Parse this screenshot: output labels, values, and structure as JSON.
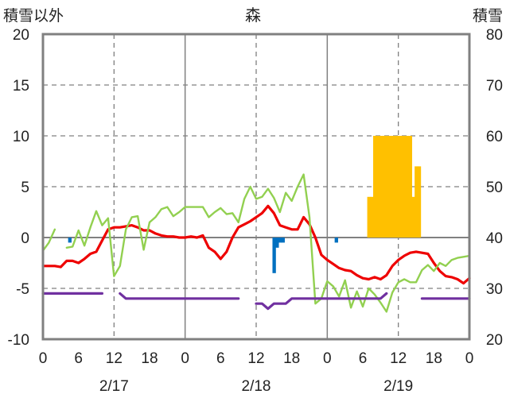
{
  "chart_data": {
    "type": "bar+line",
    "title": "森",
    "y_left_label": "積雪以外",
    "y_right_label": "積雪",
    "y_left_ticks": [
      "20",
      "15",
      "10",
      "5",
      "0",
      "-5",
      "-10"
    ],
    "y_right_ticks": [
      "80",
      "70",
      "60",
      "50",
      "40",
      "30",
      "20"
    ],
    "ylim_left": [
      -10,
      20
    ],
    "ylim_right": [
      20,
      80
    ],
    "x_hours_range": [
      0,
      72
    ],
    "x_tick_labels": [
      "0",
      "6",
      "12",
      "18",
      "0",
      "6",
      "12",
      "18",
      "0",
      "6",
      "12",
      "18",
      "0"
    ],
    "date_labels": [
      {
        "hour": 12,
        "text": "2/17"
      },
      {
        "hour": 36,
        "text": "2/18"
      },
      {
        "hour": 60,
        "text": "2/19"
      }
    ],
    "grid": {
      "solid_x_hours": [
        24,
        48
      ],
      "dashed_x_hours": [
        12,
        36,
        60
      ],
      "dashed_y_left": [
        15,
        10,
        5,
        -5
      ]
    },
    "colors": {
      "red_line": "#ee0000",
      "green_line": "#92d050",
      "purple_line": "#7030a0",
      "blue_bar": "#0070c0",
      "orange_bar": "#ffc000",
      "axis": "#808080"
    },
    "snow_depth_bars": {
      "axis": "right",
      "base": 40,
      "points": [
        [
          55.0,
          48
        ],
        [
          55.5,
          48
        ],
        [
          56.0,
          60
        ],
        [
          56.5,
          60
        ],
        [
          57.0,
          60
        ],
        [
          57.5,
          60
        ],
        [
          58.0,
          60
        ],
        [
          58.5,
          60
        ],
        [
          59.0,
          60
        ],
        [
          59.5,
          60
        ],
        [
          60.0,
          60
        ],
        [
          60.5,
          60
        ],
        [
          61.0,
          60
        ],
        [
          61.5,
          60
        ],
        [
          62.0,
          60
        ],
        [
          62.5,
          48
        ],
        [
          63.0,
          54
        ],
        [
          63.5,
          54
        ],
        [
          64.0,
          40
        ]
      ]
    },
    "precip_bars": {
      "axis": "left",
      "points": [
        [
          4.5,
          -0.5
        ],
        [
          39.5,
          -1.0
        ],
        [
          40.0,
          -0.5
        ],
        [
          40.5,
          -0.5
        ],
        [
          39.0,
          -3.5
        ],
        [
          49.5,
          -0.5
        ]
      ]
    },
    "series": [
      {
        "key": "red",
        "axis": "left",
        "points": [
          [
            0,
            -2.8
          ],
          [
            1,
            -2.8
          ],
          [
            2,
            -2.8
          ],
          [
            3,
            -2.9
          ],
          [
            4,
            -2.3
          ],
          [
            5,
            -2.3
          ],
          [
            6,
            -2.5
          ],
          [
            7,
            -2.1
          ],
          [
            8,
            -1.6
          ],
          [
            9,
            -1.4
          ],
          [
            10,
            -0.3
          ],
          [
            11,
            0.8
          ],
          [
            12,
            1.0
          ],
          [
            13,
            1.0
          ],
          [
            14,
            1.1
          ],
          [
            15,
            1.2
          ],
          [
            16,
            1.0
          ],
          [
            17,
            0.7
          ],
          [
            18,
            0.7
          ],
          [
            19,
            0.4
          ],
          [
            20,
            0.2
          ],
          [
            21,
            0.1
          ],
          [
            22,
            0.1
          ],
          [
            23,
            0.0
          ],
          [
            24,
            0.0
          ],
          [
            25,
            0.1
          ],
          [
            26,
            0.0
          ],
          [
            27,
            0.2
          ],
          [
            28,
            -1.0
          ],
          [
            29,
            -1.4
          ],
          [
            30,
            -2.1
          ],
          [
            31,
            -1.4
          ],
          [
            32,
            0.0
          ],
          [
            33,
            1.0
          ],
          [
            34,
            1.3
          ],
          [
            35,
            1.6
          ],
          [
            36,
            2.0
          ],
          [
            37,
            2.4
          ],
          [
            38,
            3.1
          ],
          [
            39,
            2.4
          ],
          [
            40,
            1.2
          ],
          [
            41,
            1.0
          ],
          [
            42,
            0.8
          ],
          [
            43,
            0.8
          ],
          [
            44,
            2.0
          ],
          [
            45,
            1.3
          ],
          [
            46,
            0.0
          ],
          [
            47,
            -1.7
          ],
          [
            48,
            -2.2
          ],
          [
            49,
            -2.6
          ],
          [
            50,
            -3.0
          ],
          [
            51,
            -3.2
          ],
          [
            52,
            -3.3
          ],
          [
            53,
            -3.7
          ],
          [
            54,
            -4.0
          ],
          [
            55,
            -4.1
          ],
          [
            56,
            -3.9
          ],
          [
            57,
            -4.1
          ],
          [
            58,
            -3.7
          ],
          [
            59,
            -2.8
          ],
          [
            60,
            -2.2
          ],
          [
            61,
            -1.8
          ],
          [
            62,
            -1.5
          ],
          [
            63,
            -1.4
          ],
          [
            64,
            -1.5
          ],
          [
            65,
            -1.6
          ],
          [
            66,
            -2.5
          ],
          [
            67,
            -3.3
          ],
          [
            68,
            -3.8
          ],
          [
            69,
            -3.9
          ],
          [
            70,
            -4.1
          ],
          [
            71,
            -4.5
          ],
          [
            72,
            -4.0
          ]
        ]
      },
      {
        "key": "green",
        "axis": "left",
        "points": [
          [
            0,
            -1.3
          ],
          [
            1,
            -0.5
          ],
          [
            2,
            0.8
          ],
          null,
          [
            4,
            -1.0
          ],
          [
            5,
            -0.9
          ],
          [
            6,
            0.7
          ],
          [
            7,
            -0.8
          ],
          [
            8,
            1.0
          ],
          [
            9,
            2.6
          ],
          [
            10,
            1.2
          ],
          [
            11,
            1.9
          ],
          [
            12,
            -3.8
          ],
          [
            13,
            -2.8
          ],
          [
            14,
            0.8
          ],
          [
            15,
            2.0
          ],
          [
            16,
            2.1
          ],
          [
            17,
            -1.2
          ],
          [
            18,
            1.5
          ],
          [
            19,
            2.0
          ],
          [
            20,
            2.8
          ],
          [
            21,
            3.0
          ],
          [
            22,
            2.1
          ],
          [
            23,
            2.5
          ],
          [
            24,
            3.0
          ],
          [
            25,
            3.0
          ],
          [
            26,
            3.0
          ],
          [
            27,
            3.0
          ],
          [
            28,
            2.0
          ],
          [
            29,
            2.5
          ],
          [
            30,
            2.9
          ],
          [
            31,
            2.3
          ],
          [
            32,
            2.4
          ],
          [
            33,
            1.5
          ],
          [
            34,
            3.8
          ],
          [
            35,
            5.0
          ],
          [
            36,
            3.8
          ],
          [
            37,
            4.0
          ],
          [
            38,
            4.8
          ],
          [
            39,
            3.9
          ],
          [
            40,
            2.5
          ],
          [
            41,
            4.4
          ],
          [
            42,
            3.6
          ],
          [
            43,
            5.0
          ],
          [
            44,
            6.2
          ],
          [
            45,
            2.0
          ],
          [
            46,
            -6.5
          ],
          [
            47,
            -6.0
          ],
          [
            48,
            -4.3
          ],
          [
            49,
            -4.8
          ],
          [
            50,
            -5.8
          ],
          [
            51,
            -4.2
          ],
          [
            52,
            -6.9
          ],
          [
            53,
            -5.3
          ],
          [
            54,
            -6.8
          ],
          [
            55,
            -5.0
          ],
          [
            56,
            -5.6
          ],
          [
            57,
            -6.4
          ],
          [
            58,
            -7.3
          ],
          [
            59,
            -5.4
          ],
          [
            60,
            -4.4
          ],
          [
            61,
            -4.1
          ],
          [
            62,
            -4.4
          ],
          [
            63,
            -4.4
          ],
          [
            64,
            -3.2
          ],
          [
            65,
            -2.7
          ],
          [
            66,
            -3.3
          ],
          [
            67,
            -2.5
          ],
          [
            68,
            -2.8
          ],
          [
            69,
            -2.2
          ],
          [
            70,
            -2.0
          ],
          [
            71,
            -1.9
          ],
          [
            72,
            -1.8
          ]
        ]
      },
      {
        "key": "purple",
        "axis": "left",
        "points": [
          [
            0,
            -5.5
          ],
          [
            1,
            -5.5
          ],
          [
            2,
            -5.5
          ],
          [
            3,
            -5.5
          ],
          [
            4,
            -5.5
          ],
          [
            5,
            -5.5
          ],
          [
            6,
            -5.5
          ],
          [
            7,
            -5.5
          ],
          [
            8,
            -5.5
          ],
          [
            9,
            -5.5
          ],
          [
            10,
            -5.5
          ],
          null,
          [
            13,
            -5.5
          ],
          [
            14,
            -6.0
          ],
          [
            15,
            -6.0
          ],
          [
            16,
            -6.0
          ],
          [
            17,
            -6.0
          ],
          [
            18,
            -6.0
          ],
          [
            19,
            -6.0
          ],
          [
            20,
            -6.0
          ],
          [
            21,
            -6.0
          ],
          [
            22,
            -6.0
          ],
          [
            23,
            -6.0
          ],
          [
            24,
            -6.0
          ],
          [
            25,
            -6.0
          ],
          [
            26,
            -6.0
          ],
          [
            27,
            -6.0
          ],
          [
            28,
            -6.0
          ],
          [
            29,
            -6.0
          ],
          [
            30,
            -6.0
          ],
          [
            31,
            -6.0
          ],
          [
            32,
            -6.0
          ],
          [
            33,
            -6.0
          ],
          null,
          [
            36,
            -6.5
          ],
          [
            37,
            -6.5
          ],
          [
            38,
            -7.0
          ],
          [
            39,
            -6.5
          ],
          [
            40,
            -6.5
          ],
          [
            41,
            -6.5
          ],
          [
            42,
            -6.0
          ],
          [
            43,
            -6.0
          ],
          [
            44,
            -6.0
          ],
          [
            45,
            -6.0
          ],
          [
            46,
            -6.0
          ],
          [
            47,
            -6.0
          ],
          [
            48,
            -6.0
          ],
          [
            49,
            -6.0
          ],
          [
            50,
            -6.0
          ],
          [
            51,
            -6.0
          ],
          [
            52,
            -6.0
          ],
          [
            53,
            -6.0
          ],
          [
            54,
            -6.0
          ],
          [
            55,
            -6.0
          ],
          [
            56,
            -6.0
          ],
          [
            57,
            -6.0
          ],
          [
            58,
            -5.5
          ],
          null,
          [
            64,
            -6.0
          ],
          [
            65,
            -6.0
          ],
          [
            66,
            -6.0
          ],
          [
            67,
            -6.0
          ],
          [
            68,
            -6.0
          ],
          [
            69,
            -6.0
          ],
          [
            70,
            -6.0
          ],
          [
            71,
            -6.0
          ],
          [
            72,
            -6.0
          ]
        ]
      }
    ]
  }
}
